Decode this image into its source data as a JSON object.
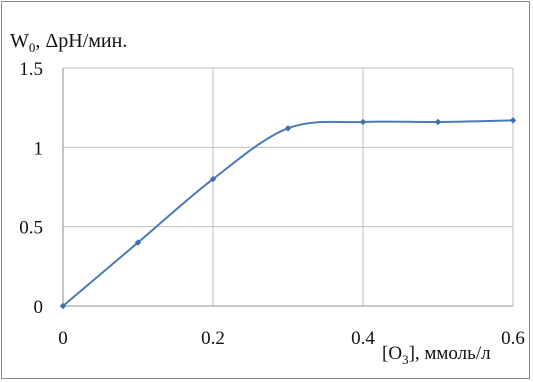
{
  "chart_data": {
    "type": "line",
    "ylabel": {
      "prefix": "W",
      "sub": "0",
      "suffix": ", ΔpH/мин."
    },
    "xlabel": {
      "prefix": "[O",
      "sub": "3",
      "suffix": "], ммоль/л"
    },
    "xlim": [
      0,
      0.6
    ],
    "ylim": [
      0,
      1.5
    ],
    "x_ticks": [
      "0",
      "0.2",
      "0.4",
      "0.6"
    ],
    "x_tick_values": [
      0,
      0.2,
      0.4,
      0.6
    ],
    "y_ticks": [
      "0",
      "0.5",
      "1",
      "1.5"
    ],
    "y_tick_values": [
      0,
      0.5,
      1,
      1.5
    ],
    "grid": true,
    "series": [
      {
        "x": [
          0,
          0.1,
          0.2,
          0.3,
          0.4,
          0.5,
          0.6
        ],
        "y": [
          0,
          0.4,
          0.8,
          1.12,
          1.16,
          1.16,
          1.17
        ]
      }
    ],
    "colors": {
      "line": "#4a7ab8",
      "marker": "#3f6fae",
      "grid": "#bfbfbf",
      "axis": "#8c8c8c"
    }
  }
}
